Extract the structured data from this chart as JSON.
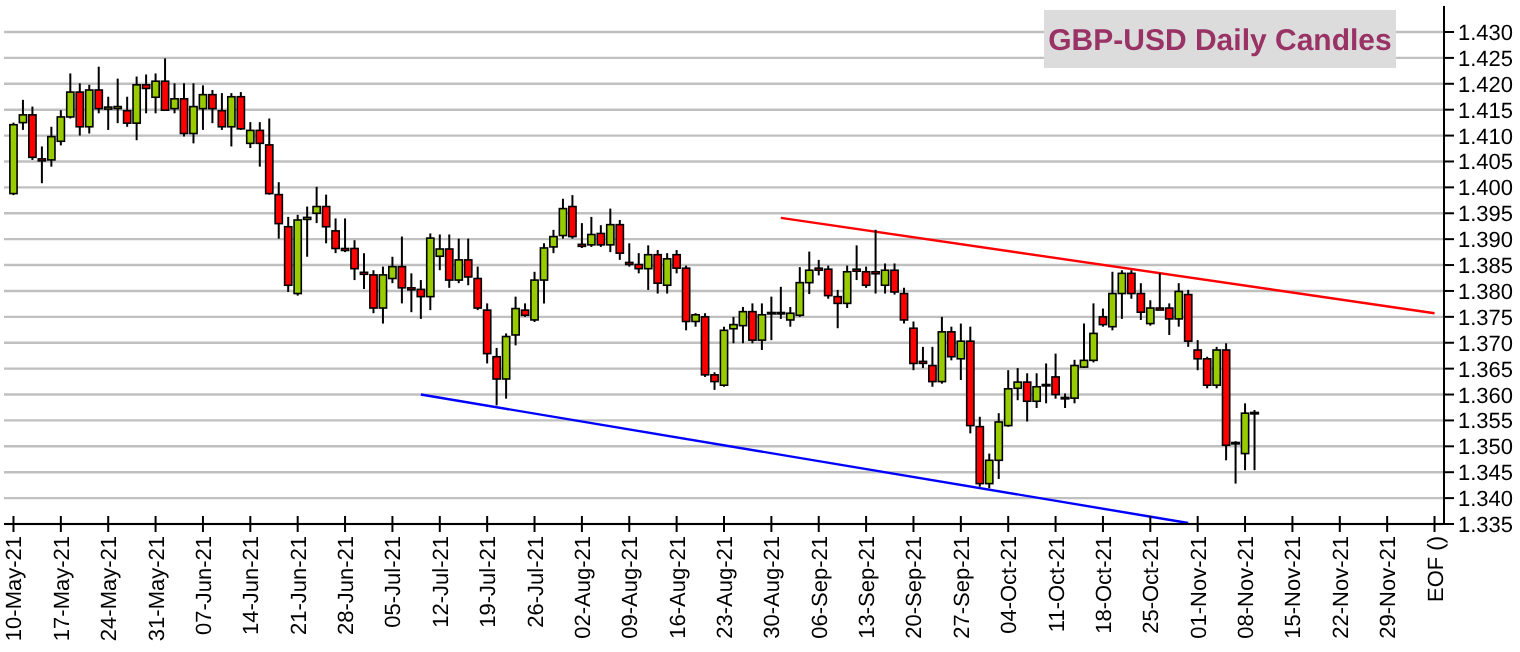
{
  "chart_data": {
    "type": "candlestick",
    "title": "GBP-USD Daily Candles",
    "categories": [
      "10-May-21",
      null,
      null,
      null,
      null,
      "17-May-21",
      null,
      null,
      null,
      null,
      "24-May-21",
      null,
      null,
      null,
      null,
      "31-May-21",
      null,
      null,
      null,
      null,
      "07-Jun-21",
      null,
      null,
      null,
      null,
      "14-Jun-21",
      null,
      null,
      null,
      null,
      "21-Jun-21",
      null,
      null,
      null,
      null,
      "28-Jun-21",
      null,
      null,
      null,
      null,
      "05-Jul-21",
      null,
      null,
      null,
      null,
      "12-Jul-21",
      null,
      null,
      null,
      null,
      "19-Jul-21",
      null,
      null,
      null,
      null,
      "26-Jul-21",
      null,
      null,
      null,
      null,
      "02-Aug-21",
      null,
      null,
      null,
      null,
      "09-Aug-21",
      null,
      null,
      null,
      null,
      "16-Aug-21",
      null,
      null,
      null,
      null,
      "23-Aug-21",
      null,
      null,
      null,
      null,
      "30-Aug-21",
      null,
      null,
      null,
      null,
      "06-Sep-21",
      null,
      null,
      null,
      null,
      "13-Sep-21",
      null,
      null,
      null,
      null,
      "20-Sep-21",
      null,
      null,
      null,
      null,
      "27-Sep-21",
      null,
      null,
      null,
      null,
      "04-Oct-21",
      null,
      null,
      null,
      null,
      "11-Oct-21",
      null,
      null,
      null,
      null,
      "18-Oct-21",
      null,
      null,
      null,
      null,
      "25-Oct-21",
      null,
      null,
      null,
      null,
      "01-Nov-21",
      null,
      null,
      null,
      null,
      "08-Nov-21",
      null,
      null,
      null,
      null,
      "15-Nov-21",
      null,
      null,
      null,
      null,
      "22-Nov-21",
      null,
      null,
      null,
      null,
      "29-Nov-21",
      null,
      null,
      null,
      null,
      "EOF ()"
    ],
    "ohlc": [
      [
        1.3988,
        1.4125,
        1.3985,
        1.4121
      ],
      [
        1.4125,
        1.4169,
        1.4111,
        1.414
      ],
      [
        1.414,
        1.4156,
        1.4053,
        1.4058
      ],
      [
        1.4055,
        1.4079,
        1.4008,
        1.4053
      ],
      [
        1.4053,
        1.4117,
        1.404,
        1.4098
      ],
      [
        1.4089,
        1.4149,
        1.4081,
        1.4136
      ],
      [
        1.4136,
        1.422,
        1.4133,
        1.4184
      ],
      [
        1.4184,
        1.4201,
        1.41,
        1.4117
      ],
      [
        1.4117,
        1.4198,
        1.4104,
        1.4188
      ],
      [
        1.4188,
        1.4233,
        1.4143,
        1.4152
      ],
      [
        1.4152,
        1.4175,
        1.4111,
        1.4155
      ],
      [
        1.4155,
        1.421,
        1.4124,
        1.4156
      ],
      [
        1.4148,
        1.4175,
        1.4117,
        1.4124
      ],
      [
        1.4124,
        1.4214,
        1.4091,
        1.4198
      ],
      [
        1.4198,
        1.4218,
        1.4143,
        1.4191
      ],
      [
        1.4174,
        1.422,
        1.4143,
        1.4205
      ],
      [
        1.4205,
        1.4249,
        1.4149,
        1.4149
      ],
      [
        1.4152,
        1.4201,
        1.4143,
        1.4171
      ],
      [
        1.4171,
        1.4201,
        1.4098,
        1.4104
      ],
      [
        1.4104,
        1.4201,
        1.4085,
        1.4156
      ],
      [
        1.4152,
        1.4197,
        1.4111,
        1.4179
      ],
      [
        1.4179,
        1.4188,
        1.4124,
        1.4152
      ],
      [
        1.4148,
        1.4182,
        1.4111,
        1.4117
      ],
      [
        1.4117,
        1.4182,
        1.4079,
        1.4175
      ],
      [
        1.4175,
        1.4184,
        1.4111,
        1.4113
      ],
      [
        1.4085,
        1.4126,
        1.4076,
        1.411
      ],
      [
        1.411,
        1.4126,
        1.404,
        1.4085
      ],
      [
        1.4082,
        1.4133,
        1.3986,
        1.3988
      ],
      [
        1.3986,
        1.401,
        1.3901,
        1.393
      ],
      [
        1.3924,
        1.3943,
        1.3798,
        1.3811
      ],
      [
        1.3795,
        1.3947,
        1.3791,
        1.3937
      ],
      [
        1.394,
        1.3963,
        1.3866,
        1.3942
      ],
      [
        1.395,
        1.4001,
        1.3931,
        1.3963
      ],
      [
        1.3963,
        1.3986,
        1.3892,
        1.3924
      ],
      [
        1.3916,
        1.394,
        1.3873,
        1.3882
      ],
      [
        1.3882,
        1.394,
        1.3875,
        1.388
      ],
      [
        1.3882,
        1.3898,
        1.3821,
        1.3843
      ],
      [
        1.3836,
        1.3873,
        1.3804,
        1.3834
      ],
      [
        1.3831,
        1.384,
        1.3757,
        1.3767
      ],
      [
        1.3767,
        1.3847,
        1.3737,
        1.3831
      ],
      [
        1.3824,
        1.3866,
        1.3815,
        1.3847
      ],
      [
        1.3847,
        1.3905,
        1.3776,
        1.3806
      ],
      [
        1.3806,
        1.3834,
        1.3759,
        1.3803
      ],
      [
        1.3803,
        1.3821,
        1.3746,
        1.3789
      ],
      [
        1.3789,
        1.3911,
        1.3763,
        1.3902
      ],
      [
        1.3867,
        1.3909,
        1.384,
        1.3881
      ],
      [
        1.3881,
        1.3909,
        1.3806,
        1.3821
      ],
      [
        1.3821,
        1.3901,
        1.3815,
        1.386
      ],
      [
        1.386,
        1.3901,
        1.3811,
        1.3827
      ],
      [
        1.3824,
        1.3847,
        1.3763,
        1.3767
      ],
      [
        1.3763,
        1.3776,
        1.366,
        1.3679
      ],
      [
        1.3673,
        1.369,
        1.3579,
        1.363
      ],
      [
        1.363,
        1.3718,
        1.3592,
        1.3712
      ],
      [
        1.3715,
        1.3789,
        1.3695,
        1.3766
      ],
      [
        1.3763,
        1.3776,
        1.375,
        1.3753
      ],
      [
        1.3744,
        1.3837,
        1.374,
        1.3821
      ],
      [
        1.3821,
        1.3892,
        1.3776,
        1.3883
      ],
      [
        1.3885,
        1.3918,
        1.3873,
        1.3905
      ],
      [
        1.3907,
        1.3978,
        1.3901,
        1.3959
      ],
      [
        1.3963,
        1.3985,
        1.3901,
        1.3905
      ],
      [
        1.389,
        1.3931,
        1.3883,
        1.3888
      ],
      [
        1.3889,
        1.3943,
        1.3885,
        1.3909
      ],
      [
        1.3911,
        1.3927,
        1.3885,
        1.3889
      ],
      [
        1.3889,
        1.3959,
        1.3875,
        1.3928
      ],
      [
        1.3928,
        1.3937,
        1.386,
        1.3873
      ],
      [
        1.3855,
        1.3892,
        1.3847,
        1.3852
      ],
      [
        1.3851,
        1.3873,
        1.3834,
        1.3843
      ],
      [
        1.3843,
        1.3888,
        1.3802,
        1.387
      ],
      [
        1.387,
        1.3879,
        1.3795,
        1.3815
      ],
      [
        1.3811,
        1.3873,
        1.3795,
        1.3862
      ],
      [
        1.387,
        1.3879,
        1.3834,
        1.3844
      ],
      [
        1.3844,
        1.3849,
        1.3724,
        1.3741
      ],
      [
        1.3741,
        1.3757,
        1.3731,
        1.3754
      ],
      [
        1.375,
        1.3757,
        1.3634,
        1.3638
      ],
      [
        1.3638,
        1.3643,
        1.3609,
        1.3625
      ],
      [
        1.3618,
        1.3731,
        1.3615,
        1.3724
      ],
      [
        1.3727,
        1.375,
        1.3699,
        1.3735
      ],
      [
        1.3733,
        1.3769,
        1.3699,
        1.376
      ],
      [
        1.376,
        1.3776,
        1.3699,
        1.3705
      ],
      [
        1.3705,
        1.3776,
        1.3686,
        1.3754
      ],
      [
        1.3757,
        1.3789,
        1.3705,
        1.3757
      ],
      [
        1.3757,
        1.3808,
        1.3746,
        1.3757
      ],
      [
        1.3744,
        1.3769,
        1.3731,
        1.3757
      ],
      [
        1.3753,
        1.3846,
        1.375,
        1.3816
      ],
      [
        1.3816,
        1.3876,
        1.3794,
        1.384
      ],
      [
        1.3844,
        1.386,
        1.383,
        1.3842
      ],
      [
        1.3842,
        1.3849,
        1.3785,
        1.3791
      ],
      [
        1.3789,
        1.3802,
        1.3728,
        1.3776
      ],
      [
        1.3776,
        1.3849,
        1.3767,
        1.3837
      ],
      [
        1.3842,
        1.3888,
        1.3821,
        1.384
      ],
      [
        1.3837,
        1.3847,
        1.3806,
        1.3811
      ],
      [
        1.3837,
        1.3918,
        1.3795,
        1.3836
      ],
      [
        1.3811,
        1.3853,
        1.3795,
        1.384
      ],
      [
        1.384,
        1.3853,
        1.3793,
        1.3798
      ],
      [
        1.3795,
        1.3806,
        1.3737,
        1.3744
      ],
      [
        1.3728,
        1.3741,
        1.3647,
        1.366
      ],
      [
        1.3664,
        1.3692,
        1.3651,
        1.3662
      ],
      [
        1.3656,
        1.3692,
        1.3615,
        1.3625
      ],
      [
        1.3625,
        1.375,
        1.3621,
        1.3721
      ],
      [
        1.3721,
        1.3731,
        1.3666,
        1.3673
      ],
      [
        1.3669,
        1.3737,
        1.3628,
        1.3703
      ],
      [
        1.3703,
        1.3731,
        1.3525,
        1.354
      ],
      [
        1.3538,
        1.3557,
        1.3422,
        1.3428
      ],
      [
        1.3428,
        1.3486,
        1.3419,
        1.3473
      ],
      [
        1.3473,
        1.3564,
        1.3437,
        1.3547
      ],
      [
        1.354,
        1.3647,
        1.3538,
        1.3611
      ],
      [
        1.3612,
        1.3651,
        1.3589,
        1.3624
      ],
      [
        1.3624,
        1.3641,
        1.3548,
        1.3587
      ],
      [
        1.3587,
        1.3641,
        1.3574,
        1.3615
      ],
      [
        1.3618,
        1.366,
        1.3583,
        1.3618
      ],
      [
        1.3634,
        1.3679,
        1.3592,
        1.36
      ],
      [
        1.3593,
        1.3602,
        1.3574,
        1.3593
      ],
      [
        1.3593,
        1.3667,
        1.3583,
        1.3656
      ],
      [
        1.3653,
        1.3737,
        1.3651,
        1.3666
      ],
      [
        1.3666,
        1.3776,
        1.3662,
        1.3718
      ],
      [
        1.375,
        1.3766,
        1.3731,
        1.3735
      ],
      [
        1.3731,
        1.3837,
        1.3724,
        1.3795
      ],
      [
        1.3795,
        1.384,
        1.3746,
        1.3834
      ],
      [
        1.3834,
        1.384,
        1.3785,
        1.3795
      ],
      [
        1.3795,
        1.3815,
        1.3744,
        1.3759
      ],
      [
        1.3737,
        1.3782,
        1.3733,
        1.3767
      ],
      [
        1.3767,
        1.3834,
        1.3763,
        1.3766
      ],
      [
        1.3767,
        1.3776,
        1.3715,
        1.3746
      ],
      [
        1.3746,
        1.3815,
        1.3731,
        1.3799
      ],
      [
        1.3793,
        1.3802,
        1.3692,
        1.3703
      ],
      [
        1.3686,
        1.3705,
        1.3647,
        1.3669
      ],
      [
        1.3669,
        1.3673,
        1.3612,
        1.3618
      ],
      [
        1.3618,
        1.3692,
        1.3612,
        1.3686
      ],
      [
        1.3686,
        1.3699,
        1.3473,
        1.3502
      ],
      [
        1.3506,
        1.351,
        1.3428,
        1.3506
      ],
      [
        1.3486,
        1.3583,
        1.3454,
        1.3564
      ],
      [
        1.3564,
        1.357,
        1.3454,
        1.3564
      ],
      null,
      null,
      null,
      null,
      null,
      null,
      null,
      null,
      null,
      null,
      null,
      null,
      null,
      null,
      null,
      null,
      null,
      null,
      null
    ],
    "series": [
      {
        "type": "line",
        "color": "#ff0000",
        "values": [
          null,
          null,
          null,
          null,
          null,
          null,
          null,
          null,
          null,
          null,
          null,
          null,
          null,
          null,
          null,
          null,
          null,
          null,
          null,
          null,
          null,
          null,
          null,
          null,
          null,
          null,
          null,
          null,
          null,
          null,
          null,
          null,
          null,
          null,
          null,
          null,
          null,
          null,
          null,
          null,
          null,
          null,
          null,
          null,
          null,
          null,
          null,
          null,
          null,
          null,
          null,
          null,
          null,
          null,
          null,
          null,
          null,
          null,
          null,
          null,
          null,
          null,
          null,
          null,
          null,
          null,
          null,
          null,
          null,
          null,
          null,
          null,
          null,
          null,
          null,
          null,
          null,
          null,
          null,
          null,
          null,
          1.3941,
          null,
          null,
          null,
          null,
          null,
          null,
          null,
          null,
          null,
          null,
          null,
          null,
          null,
          null,
          null,
          null,
          null,
          null,
          null,
          null,
          null,
          null,
          null,
          null,
          null,
          null,
          null,
          null,
          null,
          null,
          null,
          null,
          null,
          null,
          null,
          null,
          null,
          null,
          null,
          null,
          null,
          null,
          null,
          null,
          null,
          null,
          null,
          null,
          null,
          null,
          null,
          null,
          null,
          null,
          null,
          null,
          null,
          null,
          null,
          null,
          null,
          null,
          null,
          null,
          null,
          null,
          null,
          null,
          1.3757
        ]
      },
      {
        "type": "line",
        "color": "#0000ff",
        "values": [
          null,
          null,
          null,
          null,
          null,
          null,
          null,
          null,
          null,
          null,
          null,
          null,
          null,
          null,
          null,
          null,
          null,
          null,
          null,
          null,
          null,
          null,
          null,
          null,
          null,
          null,
          null,
          null,
          null,
          null,
          null,
          null,
          null,
          null,
          null,
          null,
          null,
          null,
          null,
          null,
          null,
          null,
          null,
          1.36,
          null,
          null,
          null,
          null,
          null,
          null,
          null,
          null,
          null,
          null,
          null,
          null,
          null,
          null,
          null,
          null,
          null,
          null,
          null,
          null,
          null,
          null,
          null,
          null,
          null,
          null,
          null,
          null,
          null,
          null,
          null,
          null,
          null,
          null,
          null,
          null,
          null,
          null,
          null,
          null,
          null,
          null,
          null,
          null,
          null,
          null,
          null,
          null,
          null,
          null,
          null,
          null,
          null,
          null,
          null,
          null,
          null,
          null,
          null,
          null,
          null,
          null,
          null,
          null,
          null,
          null,
          null,
          null,
          null,
          null,
          null,
          null,
          null,
          null,
          null,
          null,
          null,
          null,
          null,
          null,
          1.3352,
          null,
          null,
          null,
          null,
          null,
          null,
          null,
          null,
          null,
          null,
          null,
          null,
          null,
          null,
          null,
          null,
          null,
          null,
          null,
          null,
          null,
          null,
          null,
          null,
          null,
          null
        ]
      }
    ],
    "ylim": [
      1.335,
      1.43
    ],
    "yticks": [
      {
        "value": 1.335,
        "label": "1.335"
      },
      {
        "value": 1.34,
        "label": "1.340"
      },
      {
        "value": 1.345,
        "label": "1.345"
      },
      {
        "value": 1.35,
        "label": "1.350"
      },
      {
        "value": 1.355,
        "label": "1.355"
      },
      {
        "value": 1.36,
        "label": "1.360"
      },
      {
        "value": 1.365,
        "label": "1.365"
      },
      {
        "value": 1.37,
        "label": "1.370"
      },
      {
        "value": 1.375,
        "label": "1.375"
      },
      {
        "value": 1.38,
        "label": "1.380"
      },
      {
        "value": 1.385,
        "label": "1.385"
      },
      {
        "value": 1.39,
        "label": "1.390"
      },
      {
        "value": 1.395,
        "label": "1.395"
      },
      {
        "value": 1.4,
        "label": "1.400"
      },
      {
        "value": 1.405,
        "label": "1.405"
      },
      {
        "value": 1.41,
        "label": "1.410"
      },
      {
        "value": 1.415,
        "label": "1.415"
      },
      {
        "value": 1.42,
        "label": "1.420"
      },
      {
        "value": 1.425,
        "label": "1.425"
      },
      {
        "value": 1.43,
        "label": "1.430"
      }
    ],
    "grid": "y"
  }
}
